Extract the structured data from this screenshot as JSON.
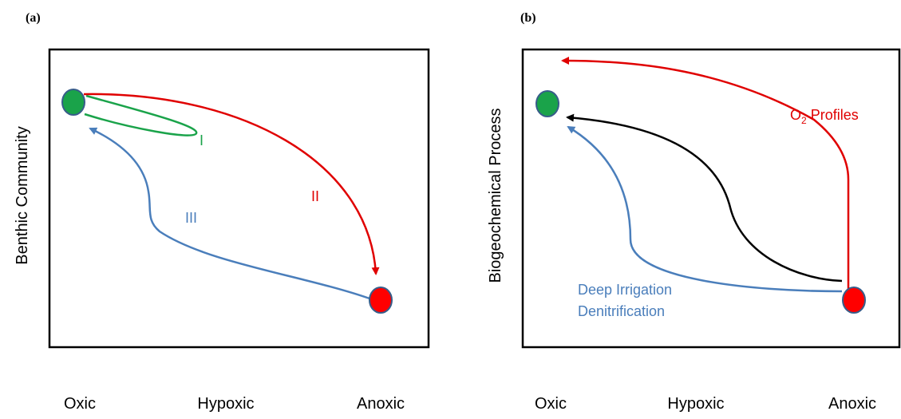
{
  "panels": [
    {
      "label": "(a)",
      "y_label": "Benthic Community",
      "x_labels": [
        "Oxic",
        "Hypoxic",
        "Anoxic"
      ],
      "curve_labels": [
        "I",
        "II",
        "III"
      ]
    },
    {
      "label": "(b)",
      "y_label": "Biogeochemical Process",
      "x_labels": [
        "Oxic",
        "Hypoxic",
        "Anoxic"
      ],
      "o2_label": {
        "main": "O",
        "sub": "2",
        "rest": " Profiles"
      },
      "blue_labels": [
        "Deep Irrigation",
        "Denitrification"
      ]
    }
  ]
}
